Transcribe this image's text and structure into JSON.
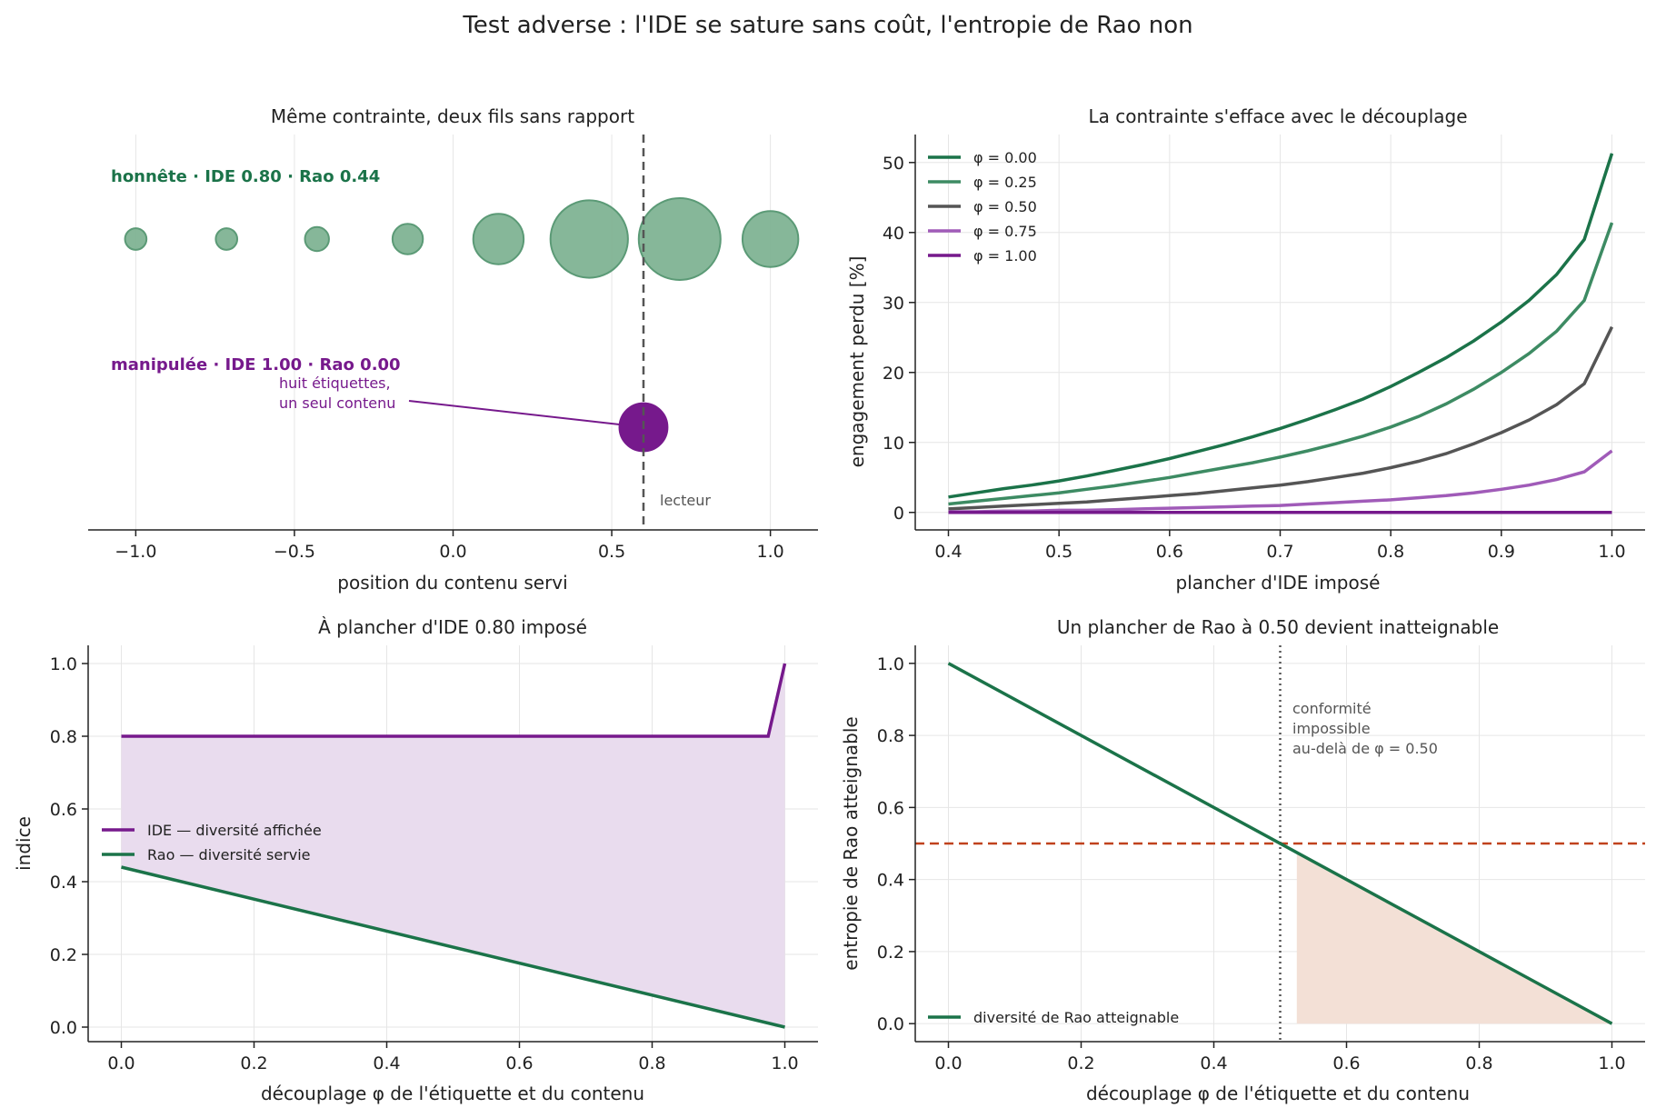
{
  "suptitle": "Test adverse : l'IDE se sature sans coût, l'entropie de Rao non",
  "colors": {
    "green": "#1b7349",
    "green_light": "#3d8b63",
    "gray": "#555555",
    "purple_light": "#a05bb8",
    "purple": "#76198c",
    "bubble_green": "#7fb394",
    "bubble_edge": "#5b9a76",
    "red": "#c0421d",
    "fill_purple": "#e9dcee",
    "fill_orange": "#f3e0d6"
  },
  "panel_a": {
    "title": "Même contrainte, deux fils sans rapport",
    "xlabel": "position du contenu servi",
    "honest_label": "honnête · IDE 0.80 · Rao 0.44",
    "manip_label": "manipulée · IDE 1.00 · Rao 0.00",
    "annotation": [
      "huit étiquettes,",
      "un seul contenu"
    ],
    "reader_label": "lecteur",
    "xticks": [
      "−1.0",
      "−0.5",
      "0.0",
      "0.5",
      "1.0"
    ]
  },
  "panel_b": {
    "title": "La contrainte s'efface avec le découplage",
    "xlabel": "plancher d'IDE imposé",
    "ylabel": "engagement perdu  [%]",
    "xticks": [
      "0.4",
      "0.5",
      "0.6",
      "0.7",
      "0.8",
      "0.9",
      "1.0"
    ],
    "yticks": [
      "0",
      "10",
      "20",
      "30",
      "40",
      "50"
    ],
    "legend": [
      "φ = 0.00",
      "φ = 0.25",
      "φ = 0.50",
      "φ = 0.75",
      "φ = 1.00"
    ]
  },
  "panel_c": {
    "title": "À plancher d'IDE 0.80 imposé",
    "xlabel": "découplage φ de l'étiquette et du contenu",
    "ylabel": "indice",
    "xticks": [
      "0.0",
      "0.2",
      "0.4",
      "0.6",
      "0.8",
      "1.0"
    ],
    "yticks": [
      "0.0",
      "0.2",
      "0.4",
      "0.6",
      "0.8",
      "1.0"
    ],
    "legend": [
      "IDE — diversité affichée",
      "Rao — diversité servie"
    ]
  },
  "panel_d": {
    "title": "Un plancher de Rao à 0.50 devient inatteignable",
    "xlabel": "découplage φ de l'étiquette et du contenu",
    "ylabel": "entropie de Rao atteignable",
    "xticks": [
      "0.0",
      "0.2",
      "0.4",
      "0.6",
      "0.8",
      "1.0"
    ],
    "yticks": [
      "0.0",
      "0.2",
      "0.4",
      "0.6",
      "0.8",
      "1.0"
    ],
    "annotation": [
      "conformité",
      "impossible",
      "au-delà de φ = 0.50"
    ],
    "legend": [
      "diversité de Rao atteignable"
    ]
  },
  "chart_data": [
    {
      "type": "scatter",
      "title": "Même contrainte, deux fils sans rapport",
      "xlabel": "position du contenu servi",
      "xlim": [
        -1.15,
        1.15
      ],
      "reader_position": 0.6,
      "series": [
        {
          "name": "honnête · IDE 0.80 · Rao 0.44",
          "x": [
            -1.0,
            -0.714,
            -0.429,
            -0.143,
            0.143,
            0.429,
            0.714,
            1.0
          ],
          "relative_size": [
            0.04,
            0.04,
            0.05,
            0.08,
            0.22,
            0.52,
            0.58,
            0.27
          ]
        },
        {
          "name": "manipulée · IDE 1.00 · Rao 0.00",
          "x": [
            0.6
          ],
          "relative_size": [
            0.2
          ]
        }
      ]
    },
    {
      "type": "line",
      "title": "La contrainte s'efface avec le découplage",
      "xlabel": "plancher d'IDE imposé",
      "ylabel": "engagement perdu  [%]",
      "xlim": [
        0.37,
        1.03
      ],
      "ylim": [
        -2.5,
        54
      ],
      "x": [
        0.4,
        0.425,
        0.45,
        0.475,
        0.5,
        0.525,
        0.55,
        0.575,
        0.6,
        0.625,
        0.65,
        0.675,
        0.7,
        0.725,
        0.75,
        0.775,
        0.8,
        0.825,
        0.85,
        0.875,
        0.9,
        0.925,
        0.95,
        0.975,
        1.0
      ],
      "series": [
        {
          "name": "φ = 0.00",
          "values": [
            2.2,
            2.8,
            3.4,
            3.9,
            4.5,
            5.2,
            6.0,
            6.8,
            7.7,
            8.7,
            9.7,
            10.8,
            12.0,
            13.3,
            14.7,
            16.2,
            18.0,
            20.0,
            22.1,
            24.5,
            27.2,
            30.3,
            34.0,
            39.0,
            51.3
          ]
        },
        {
          "name": "φ = 0.25",
          "values": [
            1.2,
            1.6,
            2.0,
            2.4,
            2.8,
            3.3,
            3.8,
            4.4,
            5.0,
            5.7,
            6.4,
            7.1,
            7.9,
            8.8,
            9.8,
            10.9,
            12.2,
            13.7,
            15.5,
            17.6,
            20.0,
            22.7,
            25.9,
            30.3,
            41.4
          ]
        },
        {
          "name": "φ = 0.50",
          "values": [
            0.5,
            0.7,
            0.9,
            1.1,
            1.3,
            1.5,
            1.8,
            2.1,
            2.4,
            2.7,
            3.1,
            3.5,
            3.9,
            4.4,
            5.0,
            5.6,
            6.4,
            7.3,
            8.4,
            9.8,
            11.4,
            13.2,
            15.4,
            18.4,
            26.5
          ]
        },
        {
          "name": "φ = 0.75",
          "values": [
            0.1,
            0.1,
            0.2,
            0.2,
            0.3,
            0.3,
            0.4,
            0.5,
            0.6,
            0.7,
            0.8,
            0.9,
            1.0,
            1.2,
            1.4,
            1.6,
            1.8,
            2.1,
            2.4,
            2.8,
            3.3,
            3.9,
            4.7,
            5.8,
            8.8
          ]
        },
        {
          "name": "φ = 1.00",
          "values": [
            0,
            0,
            0,
            0,
            0,
            0,
            0,
            0,
            0,
            0,
            0,
            0,
            0,
            0,
            0,
            0,
            0,
            0,
            0,
            0,
            0,
            0,
            0,
            0,
            0
          ]
        }
      ]
    },
    {
      "type": "area",
      "title": "À plancher d'IDE 0.80 imposé",
      "xlabel": "découplage φ de l'étiquette et du contenu",
      "ylabel": "indice",
      "xlim": [
        -0.05,
        1.05
      ],
      "ylim": [
        -0.04,
        1.05
      ],
      "series": [
        {
          "name": "IDE — diversité affichée",
          "x": [
            0.0,
            0.975,
            1.0
          ],
          "values": [
            0.8,
            0.8,
            1.0
          ]
        },
        {
          "name": "Rao — diversité servie",
          "x": [
            0.0,
            1.0
          ],
          "values": [
            0.44,
            0.0
          ]
        }
      ]
    },
    {
      "type": "line",
      "title": "Un plancher de Rao à 0.50 devient inatteignable",
      "xlabel": "découplage φ de l'étiquette et du contenu",
      "ylabel": "entropie de Rao atteignable",
      "xlim": [
        -0.05,
        1.05
      ],
      "ylim": [
        -0.05,
        1.05
      ],
      "threshold": 0.5,
      "phi_limit": 0.5,
      "shaded_from": 0.525,
      "series": [
        {
          "name": "diversité de Rao atteignable",
          "x": [
            0.0,
            1.0
          ],
          "values": [
            1.0,
            0.0
          ]
        }
      ]
    }
  ]
}
